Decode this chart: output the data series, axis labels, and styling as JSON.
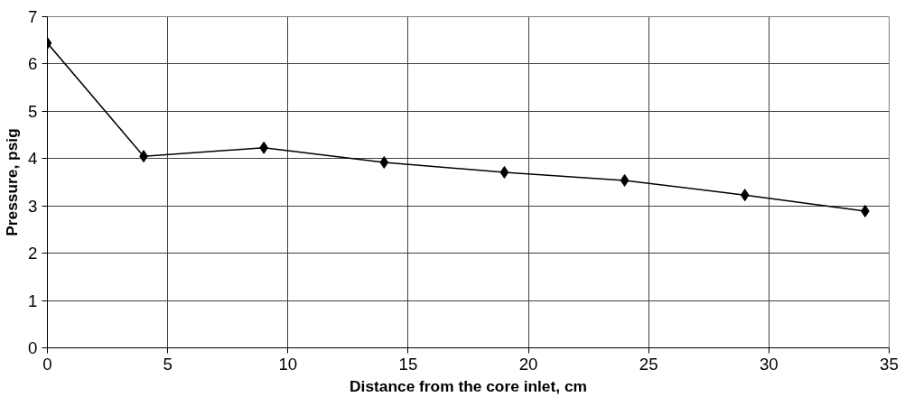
{
  "chart_data": {
    "type": "line",
    "xlabel": "Distance from the core inlet, cm",
    "ylabel": "Pressure, psig",
    "x": [
      0,
      4,
      9,
      14,
      19,
      24,
      29,
      34
    ],
    "series": [
      {
        "color": "#000000",
        "values": [
          6.44,
          4.05,
          4.23,
          3.92,
          3.71,
          3.54,
          3.23,
          2.89
        ]
      }
    ],
    "xlim": [
      0,
      35
    ],
    "ylim": [
      0,
      7
    ],
    "xticks": [
      0,
      5,
      10,
      15,
      20,
      25,
      30,
      35
    ],
    "yticks": [
      0,
      1,
      2,
      3,
      4,
      5,
      6,
      7
    ],
    "grid": true,
    "marker": "diamond",
    "line_style": "solid"
  }
}
